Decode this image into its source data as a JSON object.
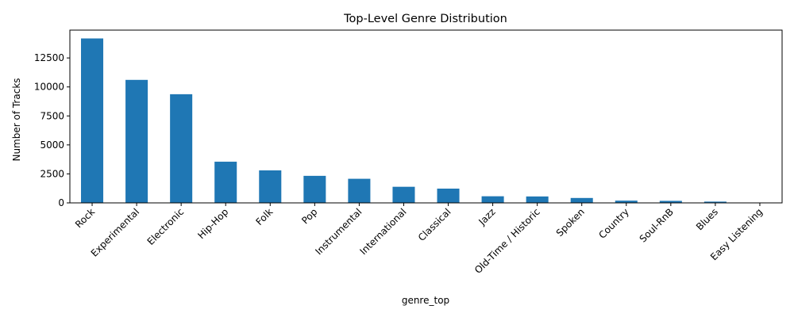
{
  "chart_data": {
    "type": "bar",
    "title": "Top-Level Genre Distribution",
    "xlabel": "genre_top",
    "ylabel": "Number of Tracks",
    "categories": [
      "Rock",
      "Experimental",
      "Electronic",
      "Hip-Hop",
      "Folk",
      "Pop",
      "Instrumental",
      "International",
      "Classical",
      "Jazz",
      "Old-Time / Historic",
      "Spoken",
      "Country",
      "Soul-RnB",
      "Blues",
      "Easy Listening"
    ],
    "values": [
      14182,
      10608,
      9372,
      3552,
      2803,
      2332,
      2079,
      1389,
      1230,
      571,
      554,
      423,
      194,
      175,
      110,
      24
    ],
    "yticks": [
      0,
      2500,
      5000,
      7500,
      10000,
      12500
    ],
    "ylim": [
      0,
      14900
    ],
    "grid": false,
    "legend": "none",
    "bar_color": "#1f77b4"
  }
}
